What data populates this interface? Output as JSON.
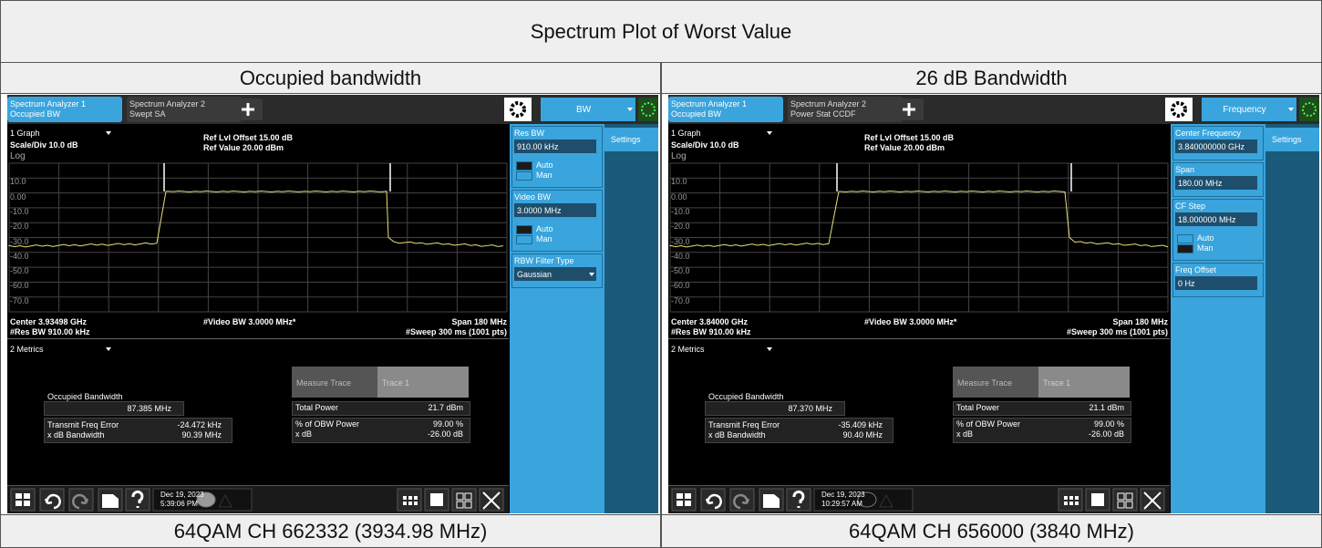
{
  "title": "Spectrum Plot of Worst Value",
  "columns": [
    {
      "header": "Occupied bandwidth",
      "caption": "64QAM CH 662332 (3934.98 MHz)",
      "screen": {
        "tabs": [
          {
            "line1": "Spectrum Analyzer 1",
            "line2": "Occupied BW"
          },
          {
            "line1": "Spectrum Analyzer 2",
            "line2": "Swept SA"
          }
        ],
        "menu": "BW",
        "graph_select": "1 Graph",
        "scale": "Scale/Div 10.0 dB",
        "log": "Log",
        "ref_offset": "Ref Lvl Offset 15.00 dB",
        "ref_value": "Ref Value 20.00 dBm",
        "y_labels": [
          "10.0",
          "0.00",
          "-10.0",
          "-20.0",
          "-30.0",
          "-40.0",
          "-50.0",
          "-60.0",
          "-70.0"
        ],
        "center": "Center 3.93498 GHz",
        "res_bw": "#Res BW 910.00 kHz",
        "video_bw": "#Video BW 3.0000 MHz*",
        "span": "Span 180 MHz",
        "sweep": "#Sweep 300 ms (1001 pts)",
        "metrics_select": "2 Metrics",
        "obw_label": "Occupied Bandwidth",
        "obw_value": "87.385 MHz",
        "tfe_label": "Transmit Freq Error",
        "tfe_value": "-24.472 kHz",
        "xdb_bw_label": "x dB Bandwidth",
        "xdb_bw_value": "90.39 MHz",
        "measure_trace_label": "Measure Trace",
        "measure_trace_value": "Trace 1",
        "total_power_label": "Total Power",
        "total_power_value": "21.7 dBm",
        "obw_power_label": "% of OBW Power",
        "obw_power_value": "99.00 %",
        "xdb_label": "x dB",
        "xdb_value": "-26.00 dB",
        "date": "Dec 19, 2023",
        "time": "5:39:06 PM",
        "side_tab": "Settings",
        "softkeys": [
          {
            "title": "Res BW",
            "value": "910.00 kHz",
            "options": [
              "Auto",
              "Man"
            ],
            "selected": 1
          },
          {
            "title": "Video BW",
            "value": "3.0000 MHz",
            "options": [
              "Auto",
              "Man"
            ],
            "selected": 1
          },
          {
            "title": "RBW Filter Type",
            "value": "Gaussian"
          }
        ]
      }
    },
    {
      "header": "26 dB Bandwidth",
      "caption": "64QAM CH 656000 (3840 MHz)",
      "screen": {
        "tabs": [
          {
            "line1": "Spectrum Analyzer 1",
            "line2": "Occupied BW"
          },
          {
            "line1": "Spectrum Analyzer 2",
            "line2": "Power Stat CCDF"
          }
        ],
        "menu": "Frequency",
        "graph_select": "1 Graph",
        "scale": "Scale/Div 10.0 dB",
        "log": "Log",
        "ref_offset": "Ref Lvl Offset 15.00 dB",
        "ref_value": "Ref Value 20.00 dBm",
        "y_labels": [
          "10.0",
          "0.00",
          "-10.0",
          "-20.0",
          "-30.0",
          "-40.0",
          "-50.0",
          "-60.0",
          "-70.0"
        ],
        "center": "Center 3.84000 GHz",
        "res_bw": "#Res BW 910.00 kHz",
        "video_bw": "#Video BW 3.0000 MHz*",
        "span": "Span 180 MHz",
        "sweep": "#Sweep 300 ms (1001 pts)",
        "metrics_select": "2 Metrics",
        "obw_label": "Occupied Bandwidth",
        "obw_value": "87.370 MHz",
        "tfe_label": "Transmit Freq Error",
        "tfe_value": "-35.409 kHz",
        "xdb_bw_label": "x dB Bandwidth",
        "xdb_bw_value": "90.40 MHz",
        "measure_trace_label": "Measure Trace",
        "measure_trace_value": "Trace 1",
        "total_power_label": "Total Power",
        "total_power_value": "21.1 dBm",
        "obw_power_label": "% of OBW Power",
        "obw_power_value": "99.00 %",
        "xdb_label": "x dB",
        "xdb_value": "-26.00 dB",
        "date": "Dec 19, 2023",
        "time": "10:29:57 AM",
        "side_tab": "Settings",
        "softkeys": [
          {
            "title": "Center Frequency",
            "value": "3.840000000 GHz"
          },
          {
            "title": "Span",
            "value": "180.00 MHz"
          },
          {
            "title": "CF Step",
            "value": "18.000000 MHz",
            "options": [
              "Auto",
              "Man"
            ],
            "selected": 0
          },
          {
            "title": "Freq Offset",
            "value": "0 Hz"
          }
        ]
      }
    }
  ]
}
